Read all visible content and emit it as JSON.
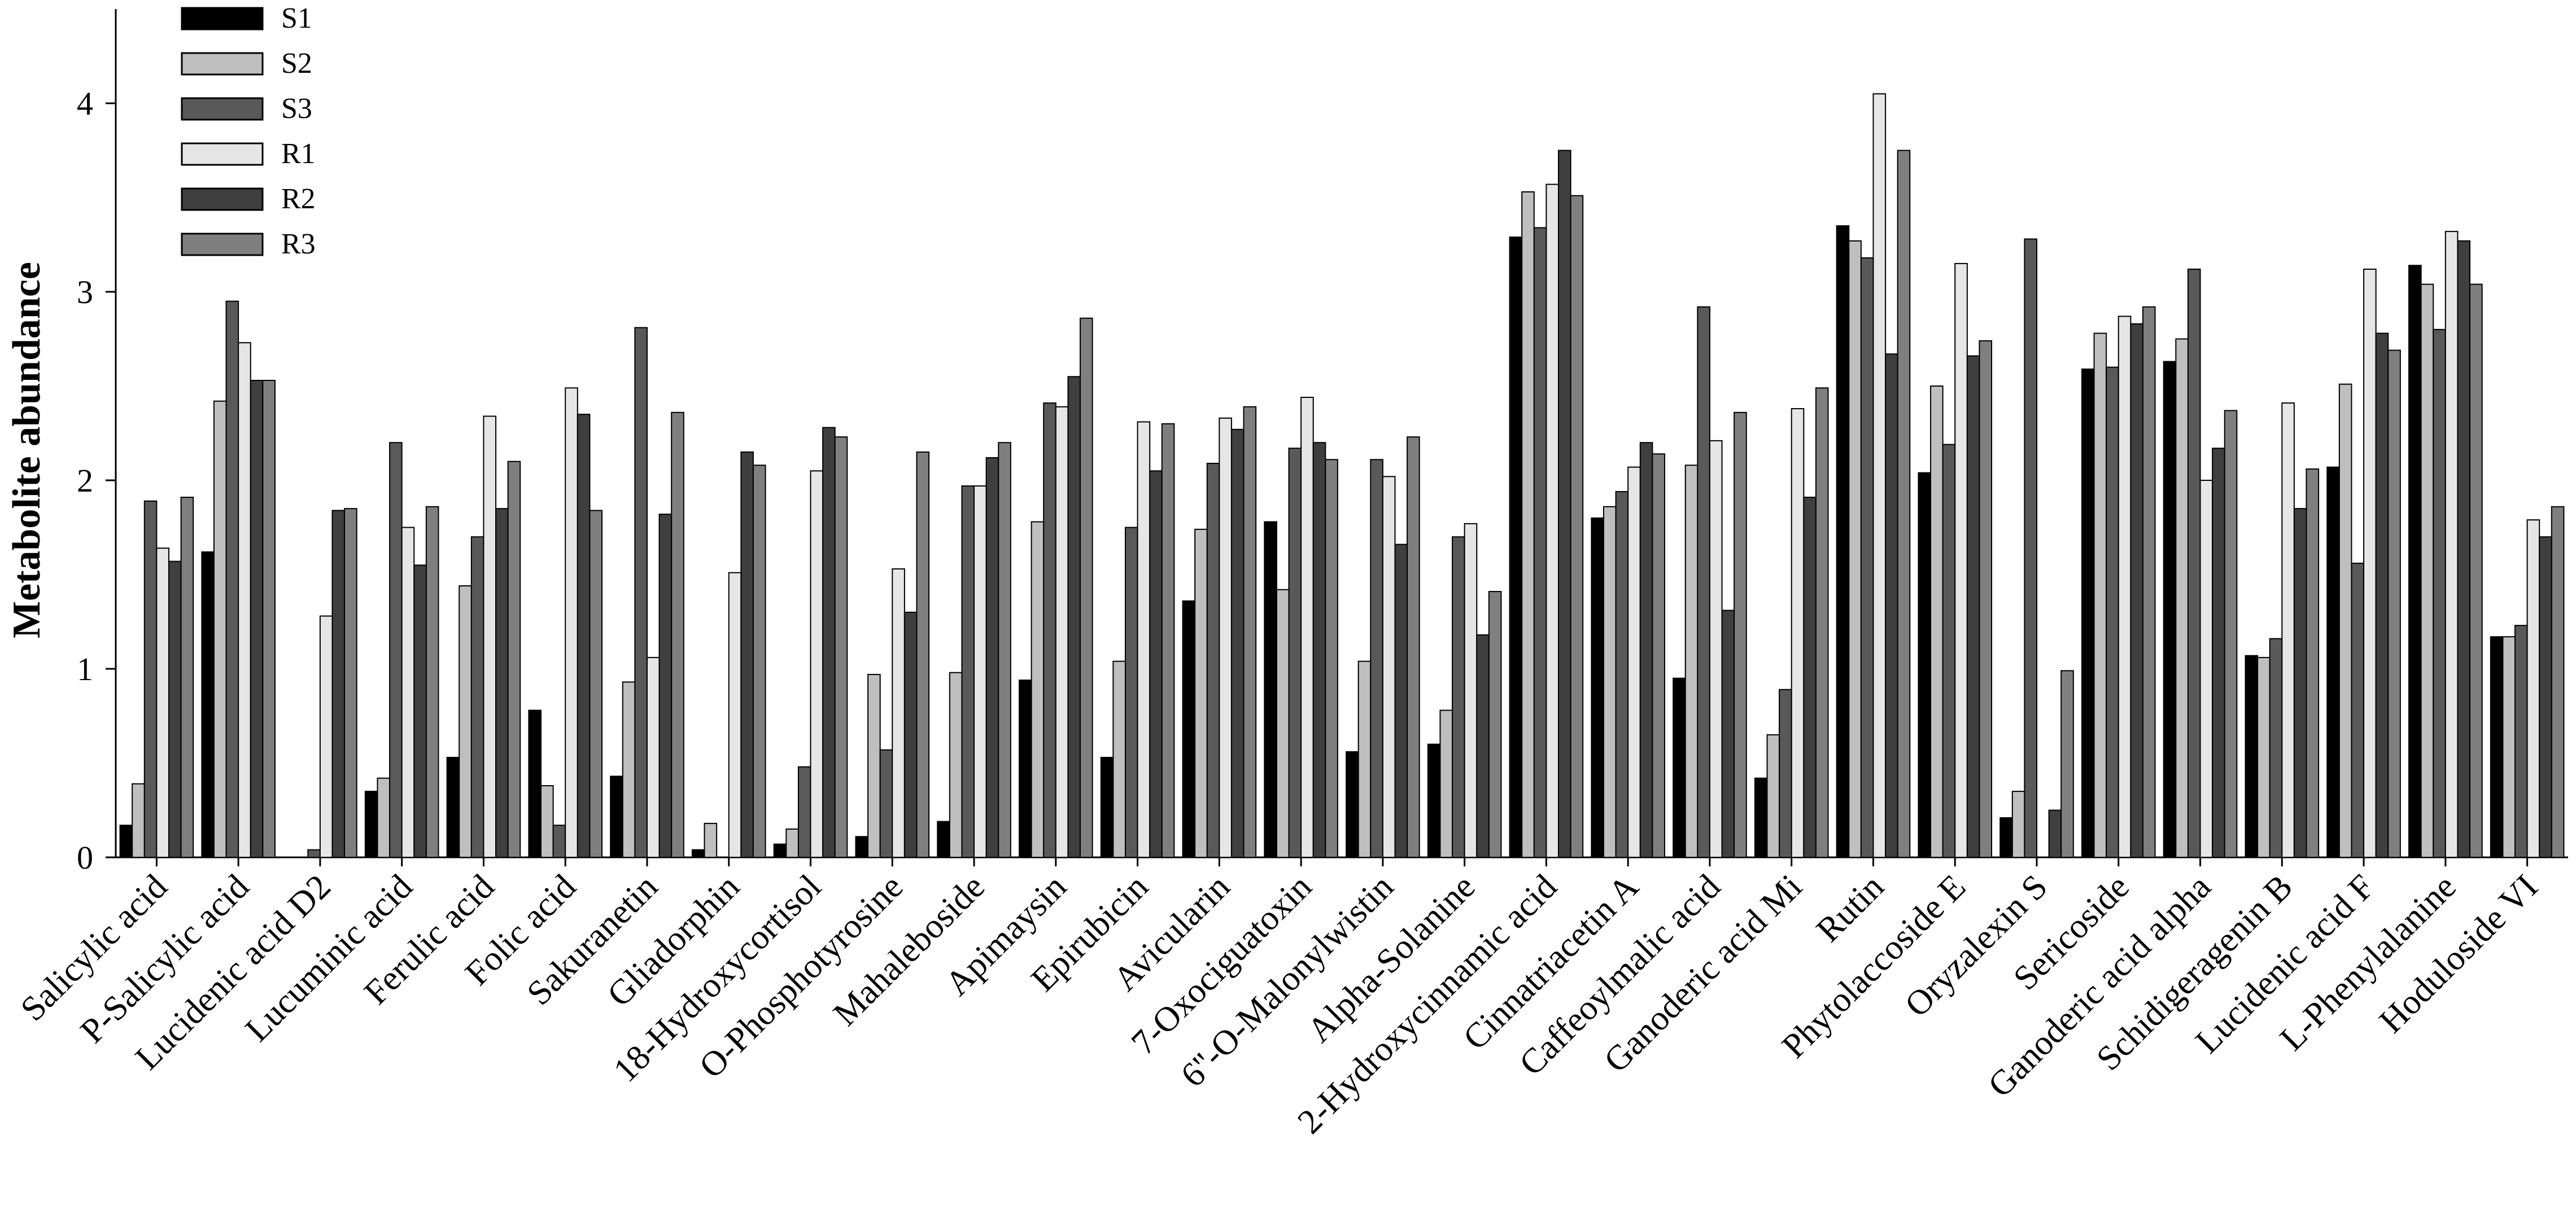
{
  "chart_data": {
    "type": "bar",
    "title": "",
    "xlabel": "",
    "ylabel": "Metabolite abundance",
    "ylim": [
      0,
      4.5
    ],
    "yticks": [
      0,
      1,
      2,
      3,
      4
    ],
    "grid": false,
    "legend_position": "top-left",
    "categories": [
      "Salicylic acid",
      "P-Salicylic acid",
      "Lucidenic acid D2",
      "Lucuminic acid",
      "Ferulic acid",
      "Folic acid",
      "Sakuranetin",
      "Gliadorphin",
      "18-Hydroxycortisol",
      "O-Phosphotyrosine",
      "Mahaleboside",
      "Apimaysin",
      "Epirubicin",
      "Avicularin",
      "7-Oxociguatoxin",
      "6''-O-Malonylwistin",
      "Alpha-Solanine",
      "2-Hydroxycinnamic acid",
      "Cinnatriacetin A",
      "Caffeoylmalic acid",
      "Ganoderic acid Mi",
      "Rutin",
      "Phytolaccoside E",
      "Oryzalexin S",
      "Sericoside",
      "Ganoderic acid alpha",
      "Schidigeragenin B",
      "Lucidenic acid F",
      "L-Phenylalanine",
      "Hoduloside VI"
    ],
    "series": [
      {
        "name": "S1",
        "color": "#000000",
        "values": [
          0.17,
          1.62,
          0.0,
          0.35,
          0.53,
          0.78,
          0.43,
          0.04,
          0.07,
          0.11,
          0.19,
          0.94,
          0.53,
          1.36,
          1.78,
          0.56,
          0.6,
          3.29,
          1.8,
          0.95,
          0.42,
          3.35,
          2.04,
          0.21,
          2.59,
          2.63,
          1.07,
          2.07,
          3.14,
          1.17
        ]
      },
      {
        "name": "S2",
        "color": "#bfbfbf",
        "values": [
          0.39,
          2.42,
          0.0,
          0.42,
          1.44,
          0.38,
          0.93,
          0.18,
          0.15,
          0.97,
          0.98,
          1.78,
          1.04,
          1.74,
          1.42,
          1.04,
          0.78,
          3.53,
          1.86,
          2.08,
          0.65,
          3.27,
          2.5,
          0.35,
          2.78,
          2.75,
          1.06,
          2.51,
          3.04,
          1.17
        ]
      },
      {
        "name": "S3",
        "color": "#595959",
        "values": [
          1.89,
          2.95,
          0.04,
          2.2,
          1.7,
          0.17,
          2.81,
          0.0,
          0.48,
          0.57,
          1.97,
          2.41,
          1.75,
          2.09,
          2.17,
          2.11,
          1.7,
          3.34,
          1.94,
          2.92,
          0.89,
          3.18,
          2.19,
          3.28,
          2.6,
          3.12,
          1.16,
          1.56,
          2.8,
          1.23
        ]
      },
      {
        "name": "R1",
        "color": "#e6e6e6",
        "values": [
          1.64,
          2.73,
          1.28,
          1.75,
          2.34,
          2.49,
          1.06,
          1.51,
          2.05,
          1.53,
          1.97,
          2.39,
          2.31,
          2.33,
          2.44,
          2.02,
          1.77,
          3.57,
          2.07,
          2.21,
          2.38,
          4.05,
          3.15,
          0.0,
          2.87,
          2.0,
          2.41,
          3.12,
          3.32,
          1.79
        ]
      },
      {
        "name": "R2",
        "color": "#3f3f3f",
        "values": [
          1.57,
          2.53,
          1.84,
          1.55,
          1.85,
          2.35,
          1.82,
          2.15,
          2.28,
          1.3,
          2.12,
          2.55,
          2.05,
          2.27,
          2.2,
          1.66,
          1.18,
          3.75,
          2.2,
          1.31,
          1.91,
          2.67,
          2.66,
          0.25,
          2.83,
          2.17,
          1.85,
          2.78,
          3.27,
          1.7
        ]
      },
      {
        "name": "R3",
        "color": "#7f7f7f",
        "values": [
          1.91,
          2.53,
          1.85,
          1.86,
          2.1,
          1.84,
          2.36,
          2.08,
          2.23,
          2.15,
          2.2,
          2.86,
          2.3,
          2.39,
          2.11,
          2.23,
          1.41,
          3.51,
          2.14,
          2.36,
          2.49,
          3.75,
          2.74,
          0.99,
          2.92,
          2.37,
          2.06,
          2.69,
          3.04,
          1.86
        ]
      }
    ]
  }
}
